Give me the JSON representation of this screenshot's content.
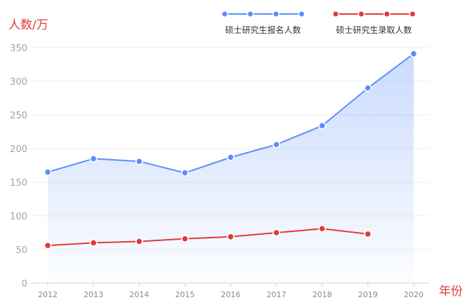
{
  "chart_data": {
    "type": "line",
    "ylabel": "人数/万",
    "xlabel": "年份",
    "x": [
      "2012",
      "2013",
      "2014",
      "2015",
      "2016",
      "2017",
      "2018",
      "2019",
      "2020"
    ],
    "ylim": [
      0,
      350
    ],
    "yticks": [
      0,
      50,
      100,
      150,
      200,
      250,
      300,
      350
    ],
    "grid": true,
    "legend_position": "top-right",
    "series": [
      {
        "name": "硕士研究生报名人数",
        "color": "#5b8ff9",
        "values": [
          165,
          185,
          181,
          164,
          187,
          206,
          234,
          290,
          341
        ],
        "area": true
      },
      {
        "name": "硕士研究生录取人数",
        "color": "#e03a37",
        "values": [
          56,
          60,
          62,
          66,
          69,
          75,
          81,
          73,
          null
        ],
        "area": false
      }
    ]
  }
}
